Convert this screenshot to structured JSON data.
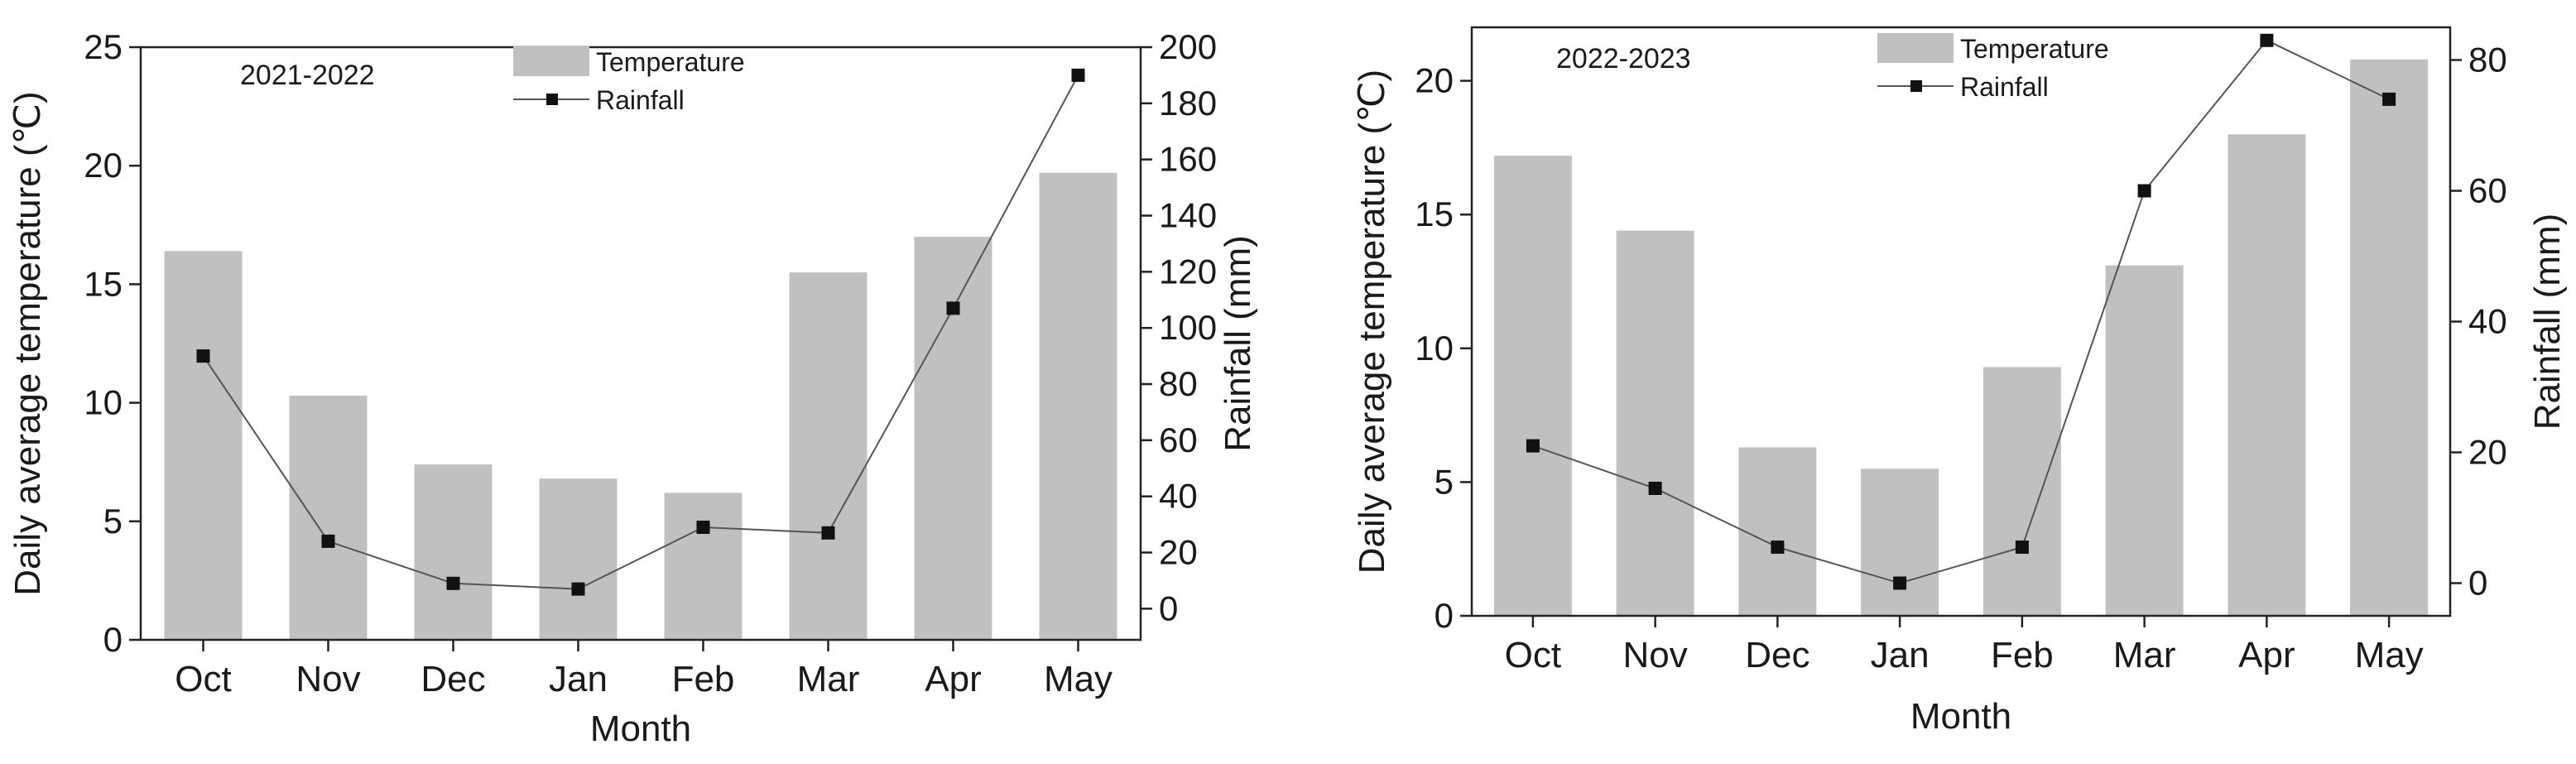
{
  "figure": {
    "chart_data": [
      {
        "type": "bar",
        "title": "2021-2022",
        "xlabel": "Month",
        "ylabel": "Daily average temperature (℃)",
        "y2label": "Rainfall (mm)",
        "ylim": [
          0,
          25
        ],
        "y2lim": [
          -11.1,
          200
        ],
        "yticks": [
          0,
          5,
          10,
          15,
          20,
          25
        ],
        "y2ticks": [
          0,
          20,
          40,
          60,
          80,
          100,
          120,
          140,
          160,
          180,
          200
        ],
        "categories": [
          "Oct",
          "Nov",
          "Dec",
          "Jan",
          "Feb",
          "Mar",
          "Apr",
          "May"
        ],
        "legend_position": "top-center",
        "series": [
          {
            "name": "Temperature",
            "kind": "bar",
            "axis": "left",
            "color": "#c0c0c0",
            "values": [
              16.4,
              10.3,
              7.4,
              6.8,
              6.2,
              15.5,
              17.0,
              19.7
            ]
          },
          {
            "name": "Rainfall",
            "kind": "line",
            "axis": "right",
            "color": "#555555",
            "marker": "square",
            "values": [
              90,
              24,
              9,
              7,
              29,
              27,
              107,
              190
            ]
          }
        ]
      },
      {
        "type": "bar",
        "title": "2022-2023",
        "xlabel": "Month",
        "ylabel": "Daily average temperature (℃)",
        "y2label": "Rainfall (mm)",
        "ylim": [
          0,
          22
        ],
        "y2lim": [
          -5,
          85
        ],
        "yticks": [
          0,
          5,
          10,
          15,
          20
        ],
        "y2ticks": [
          0,
          20,
          40,
          60,
          80
        ],
        "categories": [
          "Oct",
          "Nov",
          "Dec",
          "Jan",
          "Feb",
          "Mar",
          "Apr",
          "May"
        ],
        "legend_position": "top-center",
        "series": [
          {
            "name": "Temperature",
            "kind": "bar",
            "axis": "left",
            "color": "#c0c0c0",
            "values": [
              17.2,
              14.4,
              6.3,
              5.5,
              9.3,
              13.1,
              18.0,
              20.8
            ]
          },
          {
            "name": "Rainfall",
            "kind": "line",
            "axis": "right",
            "color": "#555555",
            "marker": "square",
            "values": [
              21,
              14.5,
              5.5,
              0,
              5.5,
              60,
              83,
              74
            ]
          }
        ]
      }
    ]
  }
}
